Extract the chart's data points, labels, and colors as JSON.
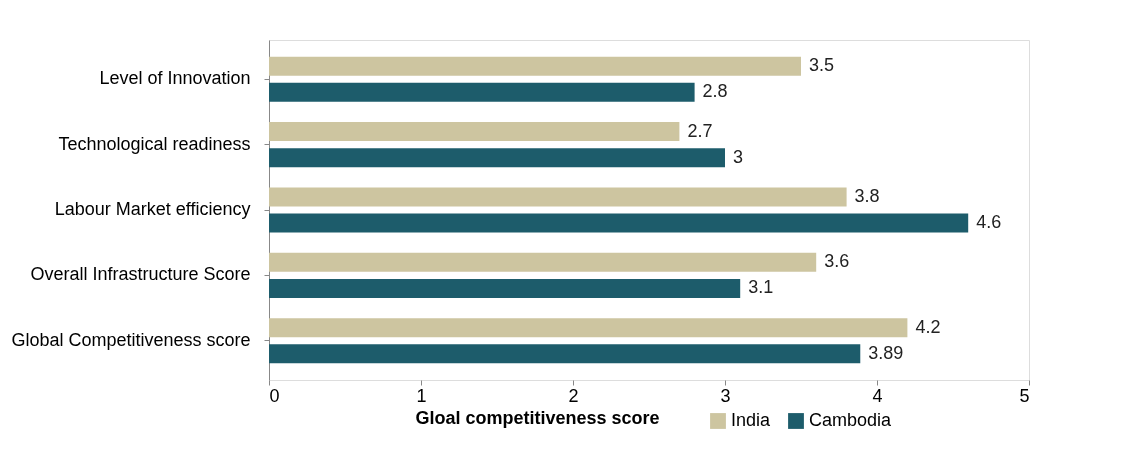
{
  "chart_data": {
    "type": "bar",
    "orientation": "horizontal",
    "xlabel": "Gloal competitiveness score",
    "categories": [
      "Level of Innovation",
      "Technological readiness",
      "Labour Market efficiency",
      "Overall Infrastructure Score",
      "Global Competitiveness score"
    ],
    "series": [
      {
        "name": "India",
        "color": "#cdc5a0",
        "values": [
          3.5,
          2.7,
          3.8,
          3.6,
          4.2
        ]
      },
      {
        "name": "Cambodia",
        "color": "#1d5c6b",
        "values": [
          2.8,
          3,
          4.6,
          3.1,
          3.89
        ]
      }
    ],
    "xlim": [
      0,
      5
    ],
    "xticks": [
      0,
      1,
      2,
      3,
      4,
      5
    ],
    "grid": false,
    "legend": "bottom",
    "data_labels": true
  }
}
